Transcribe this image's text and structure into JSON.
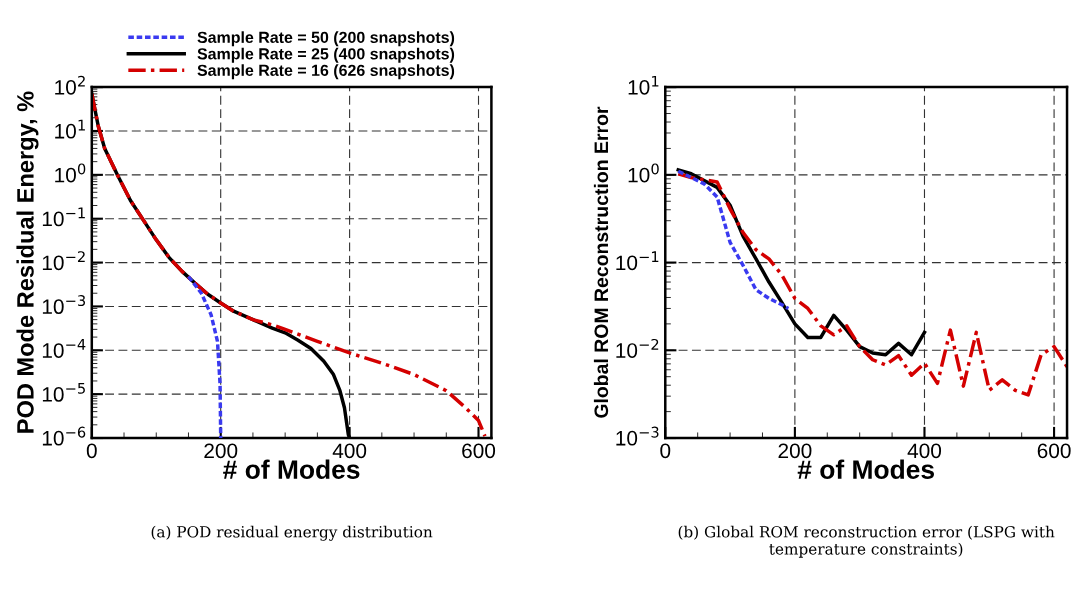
{
  "chart_data": [
    {
      "type": "line",
      "xlabel": "# of Modes",
      "ylabel": "POD Mode Residual Energy, %",
      "log": "y",
      "xlim": [
        0,
        620
      ],
      "xticks": [
        0,
        200,
        400,
        600
      ],
      "ylim": [
        1e-06,
        100
      ],
      "yticks": [
        {
          "value": 1e-06,
          "label": "10$^{−6}$"
        },
        {
          "value": 1e-05,
          "label": "10$^{−5}$"
        },
        {
          "value": 0.0001,
          "label": "10$^{−4}$"
        },
        {
          "value": 0.001,
          "label": "10$^{−3}$"
        },
        {
          "value": 0.01,
          "label": "10$^{−2}$"
        },
        {
          "value": 0.1,
          "label": "10$^{−1}$"
        },
        {
          "value": 1,
          "label": "10$^{0}$"
        },
        {
          "value": 10,
          "label": "10$^{1}$"
        },
        {
          "value": 100,
          "label": "10$^{2}$"
        }
      ],
      "grid": true,
      "legend": "top",
      "series": [
        {
          "name": "Sample Rate = 50 (200 snapshots)",
          "color": "#3a3af0",
          "line_style": "dashed",
          "x": [
            150,
            170,
            185,
            195,
            199,
            200
          ],
          "values": [
            0.0048,
            0.002,
            0.00065,
            0.00016,
            1.7e-05,
            1e-06
          ]
        },
        {
          "name": "Sample Rate = 25 (400 snapshots)",
          "color": "#000000",
          "line_style": "solid",
          "x": [
            0,
            10,
            20,
            40,
            60,
            80,
            100,
            120,
            140,
            160,
            180,
            200,
            220,
            250,
            280,
            300,
            320,
            340,
            360,
            375,
            385,
            392,
            398,
            400
          ],
          "values": [
            70,
            13,
            4.0,
            0.98,
            0.26,
            0.093,
            0.033,
            0.013,
            0.0063,
            0.0034,
            0.0019,
            0.0012,
            0.00078,
            0.0005,
            0.00032,
            0.00025,
            0.00017,
            0.00011,
            5.6e-05,
            2.8e-05,
            1.2e-05,
            4.9e-06,
            1.2e-06,
            1e-06
          ]
        },
        {
          "name": "Sample Rate = 16 (626 snapshots)",
          "color": "#d40000",
          "line_style": "dashdot",
          "x": [
            0,
            10,
            20,
            40,
            60,
            80,
            100,
            120,
            140,
            160,
            180,
            200,
            220,
            250,
            280,
            300,
            350,
            400,
            450,
            500,
            550,
            580,
            600,
            610
          ],
          "values": [
            70,
            13,
            4.0,
            0.98,
            0.26,
            0.093,
            0.033,
            0.013,
            0.0063,
            0.0034,
            0.0019,
            0.0012,
            0.00078,
            0.0005,
            0.00038,
            0.0003,
            0.00016,
            8.7e-05,
            5.1e-05,
            2.8e-05,
            1.2e-05,
            4.9e-06,
            2.5e-06,
            1.1e-06
          ]
        }
      ],
      "annotations": [
        "(a) POD residual energy distribution"
      ]
    },
    {
      "type": "line",
      "xlabel": "# of Modes",
      "ylabel": "Global ROM Reconstruction Error",
      "log": "y",
      "xlim": [
        0,
        620
      ],
      "xticks": [
        0,
        200,
        400,
        600
      ],
      "ylim": [
        0.001,
        10
      ],
      "yticks": [
        {
          "value": 0.001,
          "label": "10$^{−3}$"
        },
        {
          "value": 0.01,
          "label": "10$^{−2}$"
        },
        {
          "value": 0.1,
          "label": "10$^{−1}$"
        },
        {
          "value": 1,
          "label": "10$^{0}$"
        },
        {
          "value": 10,
          "label": "10$^{1}$"
        }
      ],
      "grid": true,
      "series": [
        {
          "color": "#3a3af0",
          "line_style": "dashed",
          "x": [
            20,
            60,
            80,
            100,
            120,
            140,
            160,
            180,
            190
          ],
          "values": [
            1.1,
            0.79,
            0.56,
            0.17,
            0.093,
            0.049,
            0.039,
            0.033,
            0.03
          ]
        },
        {
          "color": "#000000",
          "line_style": "solid",
          "x": [
            20,
            40,
            80,
            100,
            120,
            140,
            160,
            180,
            200,
            220,
            240,
            260,
            280,
            300,
            320,
            340,
            360,
            380,
            400
          ],
          "values": [
            1.14,
            1.03,
            0.72,
            0.45,
            0.2,
            0.11,
            0.06,
            0.035,
            0.02,
            0.014,
            0.014,
            0.025,
            0.017,
            0.011,
            0.0093,
            0.0089,
            0.012,
            0.0089,
            0.016
          ]
        },
        {
          "color": "#d40000",
          "line_style": "dashdot",
          "x": [
            20,
            40,
            80,
            100,
            120,
            140,
            160,
            180,
            200,
            220,
            240,
            260,
            280,
            300,
            320,
            340,
            360,
            380,
            400,
            420,
            440,
            460,
            480,
            500,
            520,
            540,
            560,
            580,
            600,
            620
          ],
          "values": [
            1.03,
            0.93,
            0.83,
            0.41,
            0.22,
            0.14,
            0.11,
            0.072,
            0.039,
            0.03,
            0.019,
            0.015,
            0.019,
            0.011,
            0.0078,
            0.0068,
            0.0087,
            0.0052,
            0.0071,
            0.0042,
            0.017,
            0.0039,
            0.016,
            0.0035,
            0.0046,
            0.0035,
            0.0031,
            0.0089,
            0.011,
            0.0065
          ]
        }
      ],
      "annotations": [
        "(b) Global ROM reconstruction error (LSPG with temperature constraints)"
      ]
    }
  ]
}
